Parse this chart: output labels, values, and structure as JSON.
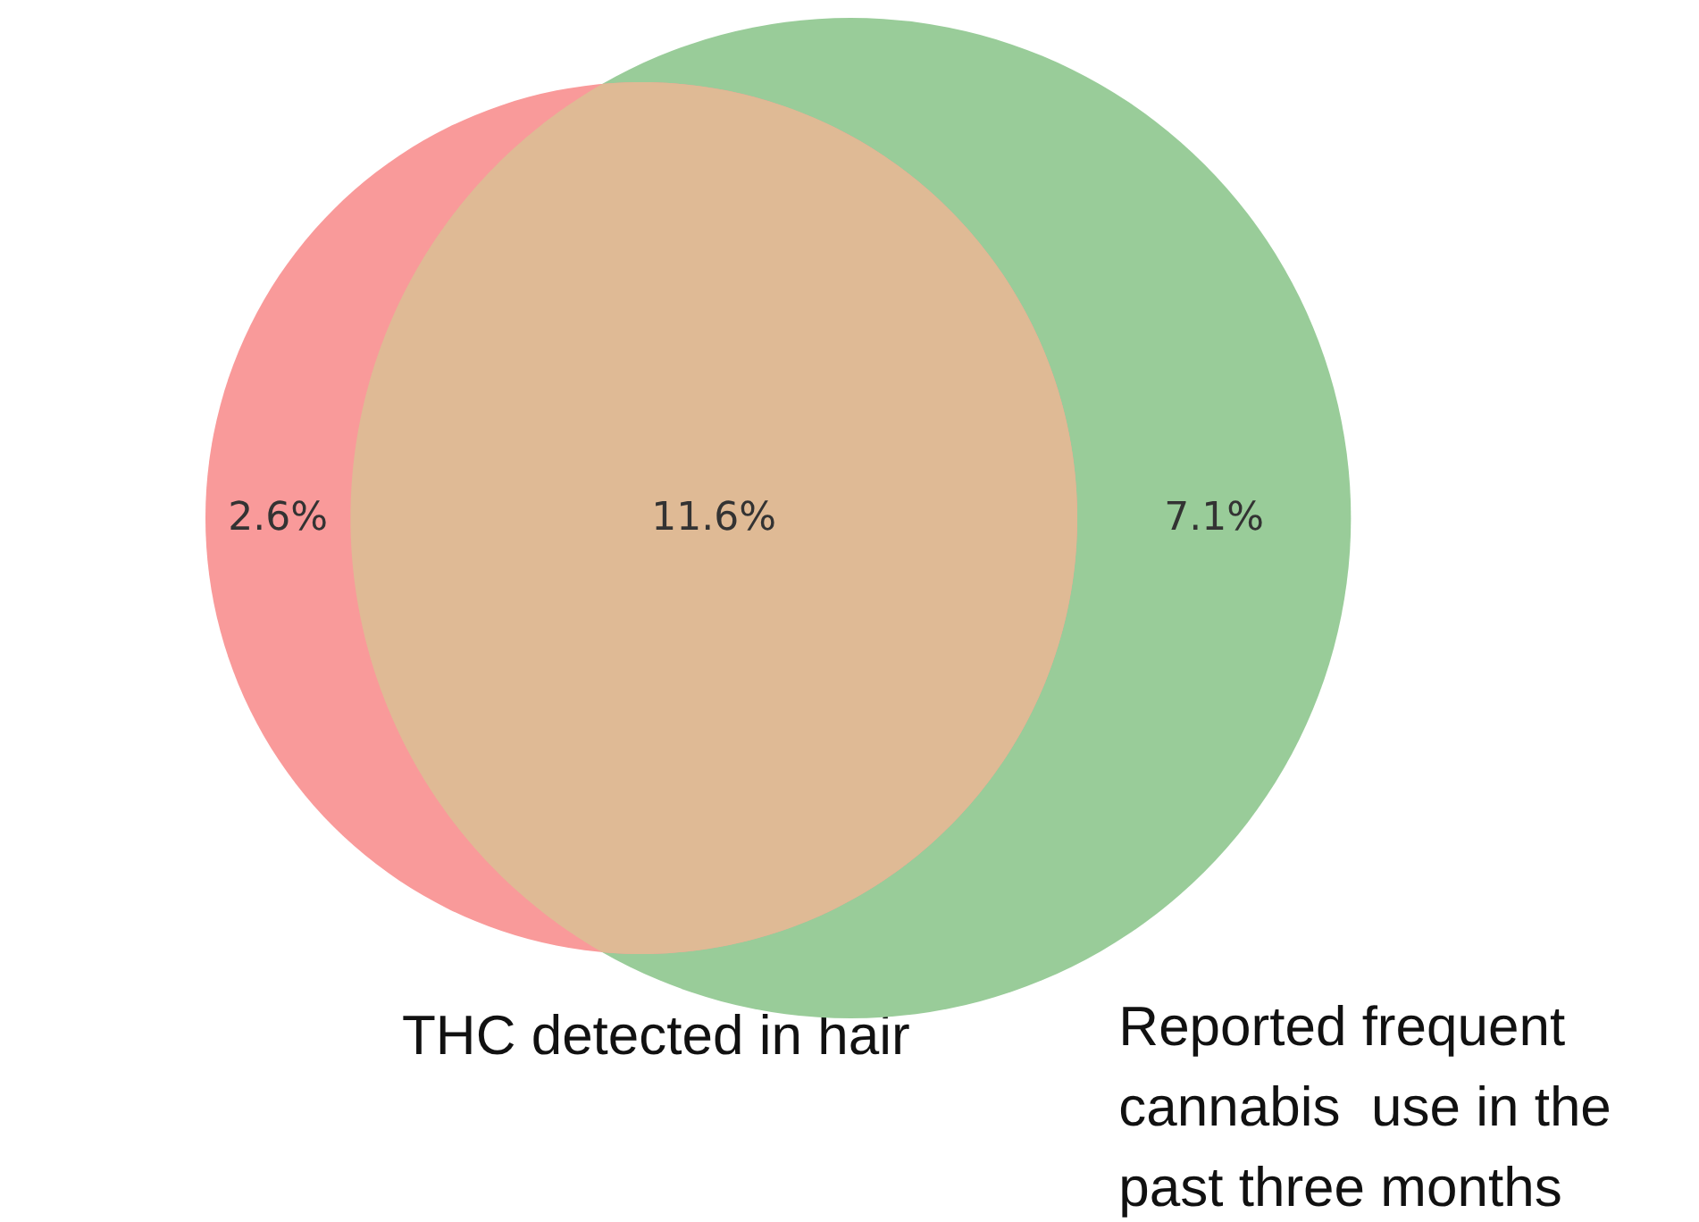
{
  "chart_data": {
    "type": "other",
    "categories": [
      null,
      null,
      null
    ],
    "values": [
      2.6,
      11.6,
      7.1
    ],
    "value_labels": [
      "2.6%",
      "11.6%",
      "7.1%"
    ],
    "data_labels": true,
    "colors": [
      "#f99a9a",
      "#dfba95",
      "#99cc99"
    ],
    "annotations": [
      "THC detected in hair",
      "Reported frequent cannabis  use in the past three months"
    ]
  }
}
